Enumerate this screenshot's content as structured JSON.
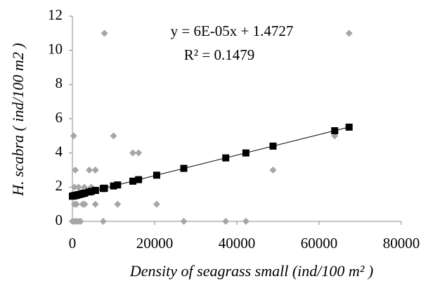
{
  "chart_data": {
    "type": "scatter",
    "x_label": "Density of seagrass small (ind/100 m² )",
    "y_label": "H. scabra ( ind/100 m2 )",
    "equation": "y = 6E-05x + 1.4727",
    "r_squared": "R² = 0.1479",
    "trendline": {
      "slope": 6e-05,
      "intercept": 1.4727,
      "color": "#000000"
    },
    "x": [
      300,
      700,
      0,
      500,
      1000,
      1500,
      2000,
      500,
      1000,
      2500,
      3000,
      500,
      1500,
      2900,
      4600,
      4100,
      5600,
      5600,
      7500,
      7800,
      10000,
      11000,
      14700,
      16100,
      20500,
      27100,
      37300,
      42200,
      48800,
      63800,
      67300
    ],
    "series": [
      {
        "marker": "diamond",
        "color": "#a6a6a6",
        "values": [
          5,
          3,
          0,
          0,
          0,
          0,
          0,
          1,
          1,
          1,
          1,
          2,
          2,
          2,
          2,
          3,
          3,
          1,
          0,
          11,
          5,
          1,
          4,
          4,
          1,
          0,
          0,
          0,
          3,
          5,
          11
        ]
      },
      {
        "marker": "square",
        "color": "#000000",
        "values": [
          1.49,
          1.51,
          1.47,
          1.5,
          1.53,
          1.56,
          1.59,
          1.5,
          1.53,
          1.62,
          1.65,
          1.5,
          1.56,
          1.65,
          1.75,
          1.72,
          1.81,
          1.81,
          1.92,
          1.94,
          2.07,
          2.13,
          2.35,
          2.44,
          2.7,
          3.1,
          3.71,
          4,
          4.4,
          5.3,
          5.51
        ]
      }
    ],
    "xlim": [
      0,
      80000
    ],
    "ylim": [
      0,
      12
    ],
    "xticks": [
      0,
      20000,
      40000,
      60000,
      80000
    ],
    "yticks": [
      0,
      2,
      4,
      6,
      8,
      10,
      12
    ]
  }
}
